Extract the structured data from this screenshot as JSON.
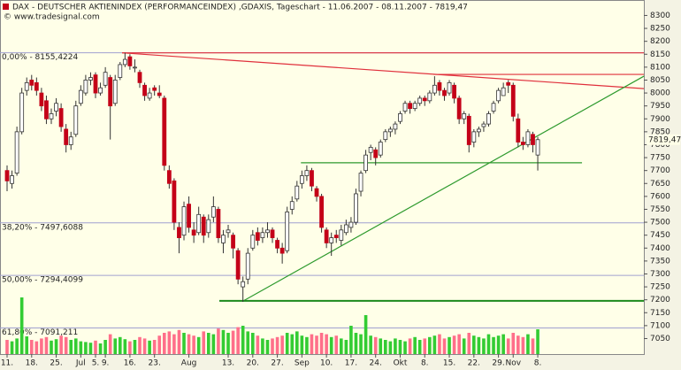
{
  "chart_data": {
    "type": "candlestick",
    "title": "DAX  - DEUTSCHER AKTIENINDEX (PERFORMANCEINDEX) ,GDAXIS, Tageschart - 11.06.2007 - 08.11.2007 - 7819,47",
    "subtitle": "© www.tradesignal.com",
    "categories": [
      "11.",
      null,
      null,
      null,
      null,
      "18.",
      null,
      null,
      null,
      null,
      "25.",
      null,
      null,
      null,
      null,
      "Jul",
      null,
      null,
      "5.",
      null,
      "9.",
      null,
      null,
      null,
      null,
      "16.",
      null,
      null,
      null,
      null,
      "23.",
      null,
      null,
      null,
      null,
      null,
      null,
      "Aug",
      null,
      null,
      null,
      null,
      null,
      null,
      null,
      "13.",
      null,
      null,
      null,
      null,
      "20.",
      null,
      null,
      null,
      null,
      "27.",
      null,
      null,
      null,
      null,
      "Sep",
      null,
      null,
      null,
      null,
      "10.",
      null,
      null,
      null,
      null,
      "17.",
      null,
      null,
      null,
      null,
      "24.",
      null,
      null,
      null,
      null,
      "Okt",
      null,
      null,
      null,
      null,
      "8.",
      null,
      null,
      null,
      null,
      "15.",
      null,
      null,
      null,
      null,
      "22.",
      null,
      null,
      null,
      null,
      "29.",
      null,
      null,
      "Nov",
      null,
      null,
      null,
      null,
      "8."
    ],
    "open": [
      7700,
      7650,
      7690,
      7850,
      8010,
      8050,
      8040,
      8000,
      7970,
      7900,
      7930,
      7940,
      7860,
      7800,
      7840,
      7960,
      8000,
      8050,
      8070,
      8000,
      8030,
      8060,
      7960,
      8060,
      8110,
      8140,
      8100,
      8080,
      8030,
      7980,
      8020,
      8000,
      7980,
      7700,
      7660,
      7480,
      7450,
      7570,
      7470,
      7460,
      7520,
      7460,
      7520,
      7550,
      7420,
      7460,
      7450,
      7390,
      7250,
      7280,
      7400,
      7460,
      7440,
      7460,
      7470,
      7430,
      7400,
      7390,
      7550,
      7590,
      7650,
      7680,
      7700,
      7630,
      7600,
      7470,
      7420,
      7450,
      7430,
      7460,
      7480,
      7500,
      7620,
      7700,
      7770,
      7780,
      7760,
      7820,
      7850,
      7860,
      7890,
      7930,
      7960,
      7940,
      7960,
      7980,
      7970,
      8000,
      8040,
      8010,
      8000,
      8030,
      7980,
      7900,
      7910,
      7810,
      7850,
      7870,
      7880,
      7930,
      7970,
      7990,
      8040,
      8030,
      7900,
      7810,
      7800,
      7840,
      7760
    ],
    "high": [
      7720,
      7700,
      7870,
      8020,
      8060,
      8070,
      8060,
      8020,
      7990,
      7940,
      7980,
      7960,
      7880,
      7850,
      7970,
      8030,
      8070,
      8080,
      8080,
      8040,
      8100,
      8070,
      8070,
      8120,
      8155.4224,
      8150,
      8130,
      8090,
      8040,
      8020,
      8030,
      8030,
      7990,
      7720,
      7670,
      7500,
      7580,
      7600,
      7500,
      7560,
      7530,
      7530,
      7600,
      7560,
      7470,
      7490,
      7460,
      7400,
      7290,
      7400,
      7470,
      7480,
      7480,
      7500,
      7480,
      7440,
      7420,
      7560,
      7600,
      7660,
      7700,
      7720,
      7710,
      7640,
      7610,
      7480,
      7460,
      7470,
      7490,
      7510,
      7520,
      7630,
      7700,
      7780,
      7800,
      7790,
      7820,
      7860,
      7870,
      7890,
      7930,
      7970,
      7970,
      7970,
      7990,
      7990,
      8010,
      8065,
      8050,
      8020,
      8050,
      8040,
      7990,
      7930,
      7920,
      7860,
      7870,
      7890,
      7930,
      7970,
      8020,
      8040,
      8050,
      8040,
      7920,
      7830,
      7860,
      7850,
      7830
    ],
    "low": [
      7620,
      7630,
      7680,
      7840,
      7990,
      8010,
      7990,
      7930,
      7880,
      7880,
      7910,
      7850,
      7770,
      7780,
      7830,
      7950,
      7990,
      8030,
      7980,
      7990,
      8020,
      7820,
      7950,
      8050,
      8100,
      8090,
      8080,
      8020,
      7970,
      7970,
      7990,
      7980,
      7700,
      7630,
      7470,
      7380,
      7430,
      7460,
      7420,
      7450,
      7420,
      7440,
      7500,
      7420,
      7380,
      7440,
      7360,
      7260,
      7192,
      7260,
      7390,
      7410,
      7420,
      7440,
      7420,
      7380,
      7340,
      7380,
      7530,
      7580,
      7630,
      7660,
      7620,
      7580,
      7460,
      7400,
      7370,
      7420,
      7410,
      7450,
      7460,
      7490,
      7600,
      7690,
      7740,
      7720,
      7750,
      7810,
      7830,
      7840,
      7880,
      7920,
      7920,
      7930,
      7950,
      7950,
      7960,
      7990,
      7990,
      7970,
      7990,
      7960,
      7880,
      7880,
      7770,
      7790,
      7830,
      7850,
      7870,
      7920,
      7960,
      7990,
      8000,
      7890,
      7790,
      7780,
      7790,
      7770,
      7700
    ],
    "close": [
      7660,
      7680,
      7850,
      8000,
      8040,
      8030,
      8010,
      7950,
      7900,
      7920,
      7960,
      7870,
      7800,
      7830,
      7950,
      8010,
      8050,
      8060,
      8000,
      8020,
      8080,
      7950,
      8050,
      8110,
      8130,
      8105,
      8100,
      8040,
      7990,
      8000,
      8010,
      7990,
      7720,
      7650,
      7500,
      7440,
      7560,
      7480,
      7450,
      7530,
      7450,
      7510,
      7560,
      7440,
      7450,
      7470,
      7400,
      7280,
      7270,
      7380,
      7450,
      7430,
      7460,
      7470,
      7440,
      7400,
      7380,
      7540,
      7580,
      7640,
      7680,
      7700,
      7640,
      7600,
      7480,
      7420,
      7440,
      7440,
      7470,
      7490,
      7500,
      7610,
      7690,
      7760,
      7790,
      7750,
      7810,
      7850,
      7860,
      7880,
      7920,
      7960,
      7940,
      7960,
      7980,
      7970,
      8000,
      8030,
      8010,
      7990,
      8040,
      7980,
      7900,
      7920,
      7800,
      7850,
      7860,
      7880,
      7920,
      7960,
      8010,
      8020,
      8030,
      7910,
      7810,
      7800,
      7850,
      7800,
      7819.47
    ],
    "up_color": "#ffffff",
    "down_color": "#c40018",
    "ylim": [
      6990,
      8305
    ],
    "yticks": [
      7050,
      7100,
      7150,
      7200,
      7250,
      7300,
      7350,
      7400,
      7450,
      7500,
      7550,
      7600,
      7650,
      7700,
      7750,
      7800,
      7850,
      7900,
      7950,
      8000,
      8050,
      8100,
      8150,
      8200,
      8250,
      8300
    ],
    "last_price": {
      "value": 7819.47,
      "label": "7819,47"
    },
    "levels": [
      {
        "label": "0,00% - 8155,4224",
        "value": 8155.4224
      },
      {
        "label": "38,20% - 7497,6088",
        "value": 7497.6088
      },
      {
        "label": "50,00% - 7294,4099",
        "value": 7294.4099
      },
      {
        "label": "61,80% - 7091,211",
        "value": 7091.211
      }
    ],
    "trendlines": [
      {
        "color": "#e0303c",
        "x": [
          23.4,
          129.6
        ],
        "y": [
          8155.4224,
          8155.4224
        ]
      },
      {
        "color": "#e0303c",
        "x": [
          23.4,
          129.6
        ],
        "y": [
          8155.4224,
          8017
        ]
      },
      {
        "color": "#e0303c",
        "x": [
          86.8,
          129.6
        ],
        "y": [
          8072,
          8072
        ]
      },
      {
        "color": "#2e9a2e",
        "x": [
          48.1,
          129.6
        ],
        "y": [
          7196,
          8065
        ]
      },
      {
        "color": "#2e9a2e",
        "x": [
          59.8,
          117
        ],
        "y": [
          7730,
          7730
        ]
      },
      {
        "color": "#1c8a1c",
        "x": [
          43.2,
          129.6
        ],
        "y": [
          7196,
          7196
        ]
      }
    ],
    "volume": {
      "axis": "y2",
      "up_color": "#33cc33",
      "down_color": "#ff6f8a",
      "values": [
        20,
        18,
        22,
        80,
        25,
        20,
        18,
        22,
        24,
        19,
        21,
        26,
        24,
        20,
        22,
        18,
        17,
        16,
        19,
        15,
        20,
        28,
        22,
        24,
        21,
        18,
        20,
        24,
        22,
        19,
        20,
        26,
        30,
        32,
        28,
        34,
        30,
        28,
        26,
        24,
        32,
        30,
        28,
        36,
        34,
        30,
        33,
        38,
        40,
        32,
        30,
        26,
        22,
        20,
        22,
        24,
        26,
        30,
        28,
        32,
        26,
        24,
        28,
        26,
        30,
        28,
        24,
        26,
        22,
        20,
        40,
        30,
        28,
        55,
        26,
        24,
        22,
        20,
        18,
        22,
        20,
        18,
        22,
        24,
        20,
        22,
        24,
        26,
        28,
        22,
        24,
        26,
        28,
        22,
        30,
        26,
        24,
        22,
        28,
        24,
        26,
        28,
        22,
        30,
        26,
        24,
        28,
        22,
        35
      ]
    },
    "y2lim": [
      0,
      100
    ]
  }
}
